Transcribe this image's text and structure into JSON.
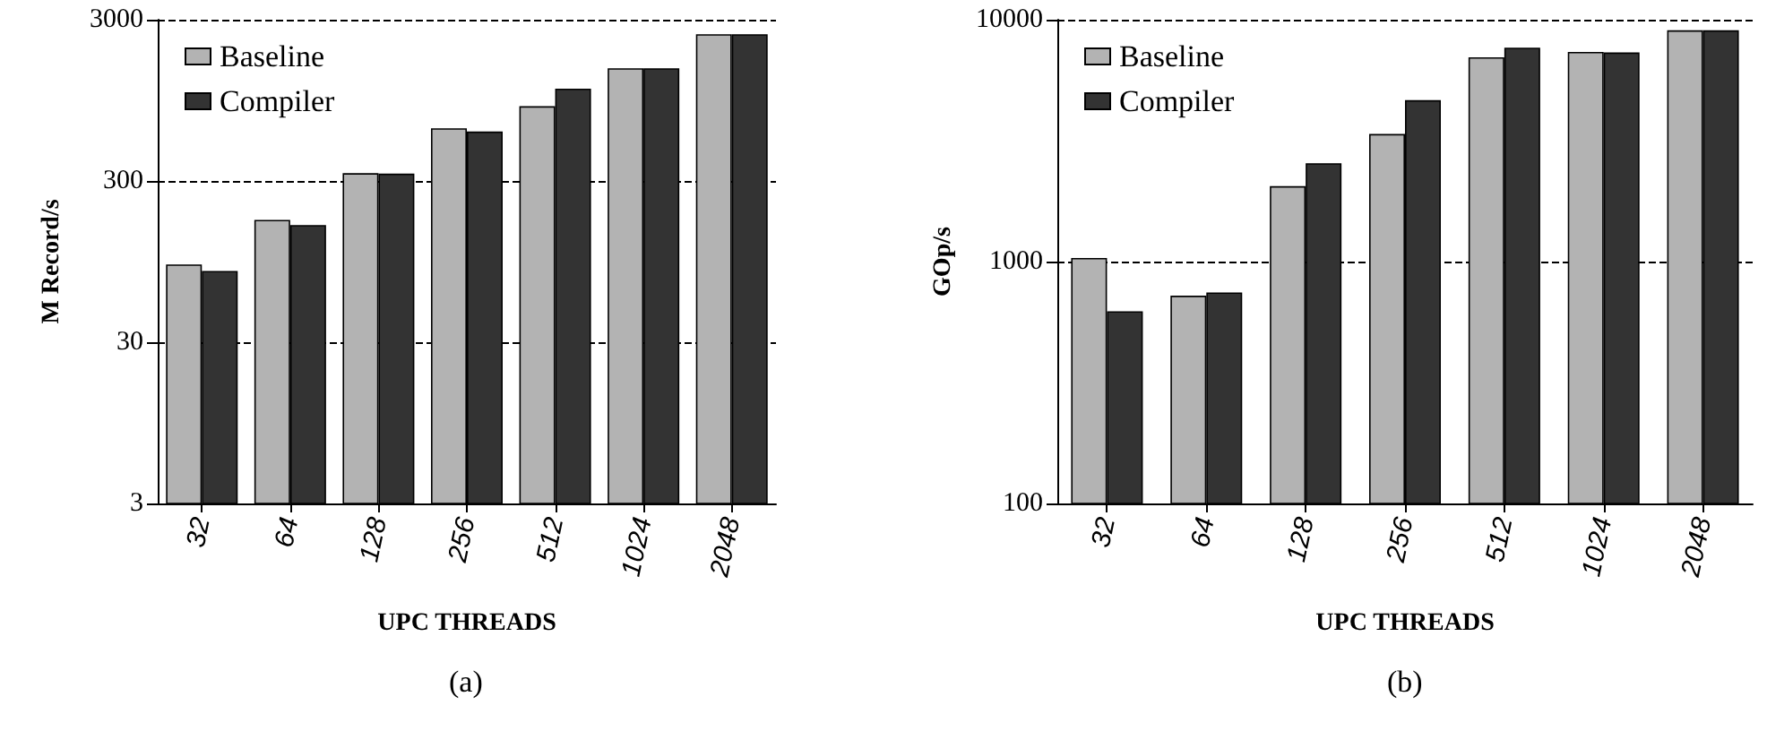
{
  "chart_data": [
    {
      "type": "bar",
      "xlabel": "UPC THREADS",
      "ylabel": "M Record/s",
      "annotations": [
        "(a)"
      ],
      "categories": [
        "32",
        "64",
        "128",
        "256",
        "512",
        "1024",
        "2048"
      ],
      "series": [
        {
          "name": "Baseline",
          "color": "#b3b3b3",
          "values": [
            91,
            172,
            335,
            636,
            872,
            1500,
            2440
          ]
        },
        {
          "name": "Compiler",
          "color": "#333333",
          "values": [
            83,
            160,
            333,
            608,
            1120,
            1500,
            2440
          ]
        }
      ],
      "ylim": [
        3,
        3000
      ],
      "yticks": [
        3,
        30,
        300,
        3000
      ],
      "log": "y",
      "grid": "y",
      "legend": "top left"
    },
    {
      "type": "bar",
      "xlabel": "UPC THREADS",
      "ylabel": "GOp/s",
      "annotations": [
        "(b)"
      ],
      "categories": [
        "32",
        "64",
        "128",
        "256",
        "512",
        "1024",
        "2048"
      ],
      "series": [
        {
          "name": "Baseline",
          "color": "#b3b3b3",
          "values": [
            1035,
            723,
            2050,
            3370,
            6990,
            7360,
            9040
          ]
        },
        {
          "name": "Compiler",
          "color": "#333333",
          "values": [
            623,
            745,
            2550,
            4650,
            7660,
            7320,
            9040
          ]
        }
      ],
      "ylim": [
        100,
        10000
      ],
      "yticks": [
        100,
        1000,
        10000
      ],
      "log": "y",
      "grid": "y",
      "legend": "top left"
    }
  ]
}
